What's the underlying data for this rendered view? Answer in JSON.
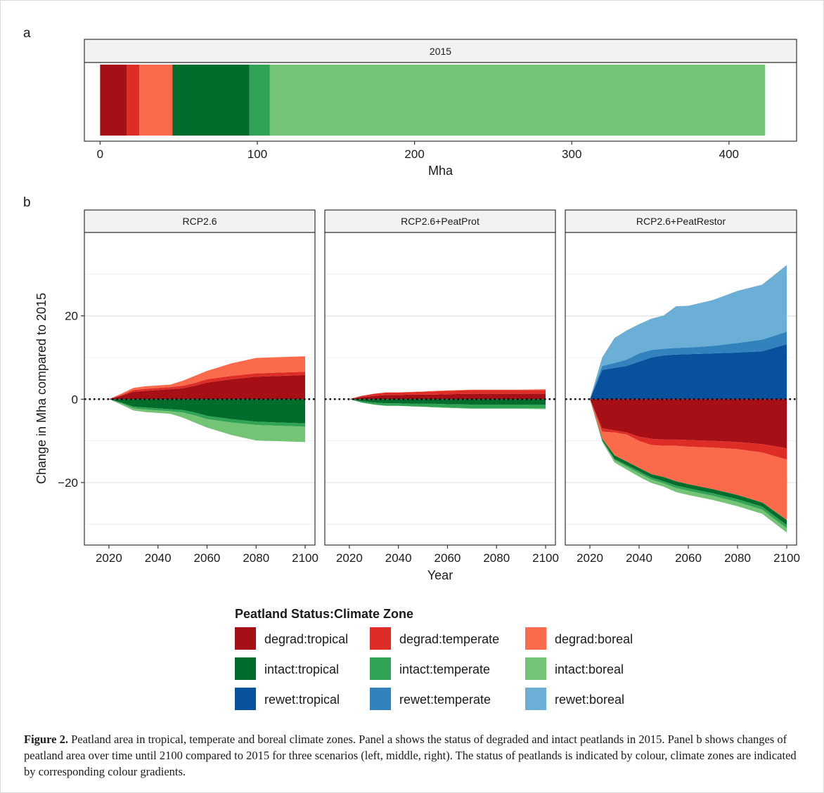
{
  "figure": {
    "panel_a_tag": "a",
    "panel_b_tag": "b",
    "caption_label": "Figure 2.",
    "caption_text": " Peatland area in tropical, temperate and boreal climate zones. Panel a shows the status of degraded and intact peatlands in 2015. Panel b shows changes of peatland area over time until 2100 compared to 2015 for three scenarios (left, middle, right). The status of peatlands is indicated by colour, climate zones are indicated by corresponding colour gradients."
  },
  "colors": {
    "degrad:tropical": "#a50f15",
    "degrad:temperate": "#de2d26",
    "degrad:boreal": "#fb6a4a",
    "intact:tropical": "#006d2c",
    "intact:temperate": "#31a354",
    "intact:boreal": "#74c476",
    "rewet:tropical": "#08519c",
    "rewet:temperate": "#3182bd",
    "rewet:boreal": "#6baed6"
  },
  "legend": {
    "title": "Peatland Status:Climate Zone",
    "items": [
      "degrad:tropical",
      "degrad:temperate",
      "degrad:boreal",
      "intact:tropical",
      "intact:temperate",
      "intact:boreal",
      "rewet:tropical",
      "rewet:temperate",
      "rewet:boreal"
    ]
  },
  "chart_data": [
    {
      "id": "panel-a",
      "type": "bar",
      "orientation": "horizontal",
      "stacked": true,
      "strip": "2015",
      "xlabel": "Mha",
      "xlim": [
        -10,
        443
      ],
      "xticks": [
        0,
        100,
        200,
        300,
        400
      ],
      "segments": [
        {
          "name": "degrad:tropical",
          "value": 17
        },
        {
          "name": "degrad:temperate",
          "value": 8
        },
        {
          "name": "degrad:boreal",
          "value": 21
        },
        {
          "name": "intact:tropical",
          "value": 49
        },
        {
          "name": "intact:temperate",
          "value": 13
        },
        {
          "name": "intact:boreal",
          "value": 315
        }
      ]
    },
    {
      "id": "panel-b",
      "type": "area",
      "stacked": true,
      "xlabel": "Year",
      "ylabel": "Change in Mha compared to 2015",
      "xlim": [
        2010,
        2104
      ],
      "ylim": [
        -35,
        40
      ],
      "xticks": [
        2020,
        2040,
        2060,
        2080,
        2100
      ],
      "yticks": [
        -20,
        0,
        20
      ],
      "reference_line": 0,
      "x": [
        2015,
        2020,
        2025,
        2030,
        2035,
        2040,
        2045,
        2050,
        2055,
        2060,
        2070,
        2080,
        2090,
        2100
      ],
      "facets": [
        {
          "strip": "RCP2.6",
          "positive": [
            {
              "name": "degrad:tropical",
              "values": [
                0,
                0,
                0.8,
                1.8,
                2.0,
                2.2,
                2.4,
                2.6,
                3.2,
                4.0,
                4.8,
                5.4,
                5.6,
                5.8
              ]
            },
            {
              "name": "degrad:temperate",
              "values": [
                0,
                0,
                0.2,
                0.4,
                0.5,
                0.5,
                0.5,
                0.6,
                0.7,
                0.8,
                0.8,
                0.8,
                0.8,
                0.8
              ]
            },
            {
              "name": "degrad:boreal",
              "values": [
                0,
                0,
                0.3,
                0.5,
                0.6,
                0.6,
                0.6,
                1.2,
                1.7,
                2.0,
                3.0,
                3.7,
                3.7,
                3.7
              ]
            }
          ],
          "negative": [
            {
              "name": "intact:tropical",
              "values": [
                0,
                0,
                -0.8,
                -1.8,
                -2.0,
                -2.2,
                -2.4,
                -2.6,
                -3.2,
                -4.0,
                -4.8,
                -5.4,
                -5.6,
                -5.8
              ]
            },
            {
              "name": "intact:temperate",
              "values": [
                0,
                0,
                -0.2,
                -0.4,
                -0.5,
                -0.5,
                -0.5,
                -0.6,
                -0.7,
                -0.8,
                -0.8,
                -0.8,
                -0.8,
                -0.8
              ]
            },
            {
              "name": "intact:boreal",
              "values": [
                0,
                0,
                -0.3,
                -0.5,
                -0.6,
                -0.6,
                -0.6,
                -1.2,
                -1.7,
                -2.0,
                -3.0,
                -3.7,
                -3.7,
                -3.7
              ]
            }
          ]
        },
        {
          "strip": "RCP2.6+PeatProt",
          "positive": [
            {
              "name": "degrad:tropical",
              "values": [
                0,
                0,
                0.5,
                0.8,
                1.0,
                1.0,
                1.1,
                1.1,
                1.1,
                1.2,
                1.3,
                1.3,
                1.3,
                1.3
              ]
            },
            {
              "name": "degrad:temperate",
              "values": [
                0,
                0,
                0.3,
                0.5,
                0.6,
                0.6,
                0.6,
                0.7,
                0.8,
                0.8,
                0.9,
                0.9,
                0.9,
                0.9
              ]
            },
            {
              "name": "degrad:boreal",
              "values": [
                0,
                0,
                0,
                0,
                0,
                0,
                0.05,
                0.05,
                0.1,
                0.1,
                0.1,
                0.1,
                0.1,
                0.2
              ]
            }
          ],
          "negative": [
            {
              "name": "intact:tropical",
              "values": [
                0,
                0,
                -0.5,
                -0.8,
                -1.0,
                -1.0,
                -1.1,
                -1.1,
                -1.1,
                -1.2,
                -1.3,
                -1.3,
                -1.3,
                -1.3
              ]
            },
            {
              "name": "intact:temperate",
              "values": [
                0,
                0,
                -0.3,
                -0.5,
                -0.6,
                -0.6,
                -0.6,
                -0.7,
                -0.8,
                -0.8,
                -0.9,
                -0.9,
                -0.9,
                -0.9
              ]
            },
            {
              "name": "intact:boreal",
              "values": [
                0,
                0,
                0,
                0,
                0,
                0,
                -0.05,
                -0.05,
                -0.1,
                -0.1,
                -0.1,
                -0.1,
                -0.1,
                -0.2
              ]
            }
          ]
        },
        {
          "strip": "RCP2.6+PeatRestor",
          "positive": [
            {
              "name": "rewet:tropical",
              "values": [
                0,
                0,
                7.0,
                7.5,
                8.0,
                9.0,
                10.0,
                10.5,
                10.7,
                10.8,
                11.0,
                11.2,
                11.5,
                13.2
              ]
            },
            {
              "name": "rewet:temperate",
              "values": [
                0,
                0,
                1.0,
                1.2,
                1.5,
                2.0,
                1.8,
                1.6,
                1.6,
                1.6,
                1.8,
                2.3,
                2.8,
                3.0
              ]
            },
            {
              "name": "rewet:boreal",
              "values": [
                0,
                0,
                2.0,
                6.0,
                7.0,
                7.0,
                7.5,
                8.0,
                10.0,
                10.0,
                11.0,
                12.5,
                13.2,
                16.0
              ]
            }
          ],
          "negative": [
            {
              "name": "degrad:tropical",
              "values": [
                0,
                0,
                -7.0,
                -7.5,
                -8.0,
                -9.0,
                -9.5,
                -9.7,
                -9.7,
                -9.8,
                -10.0,
                -10.3,
                -10.8,
                -11.8
              ]
            },
            {
              "name": "degrad:temperate",
              "values": [
                0,
                0,
                -0.8,
                -0.5,
                -0.5,
                -1.0,
                -1.5,
                -1.5,
                -1.5,
                -1.6,
                -1.6,
                -1.7,
                -2.0,
                -2.7
              ]
            },
            {
              "name": "degrad:boreal",
              "values": [
                0,
                0,
                -1.7,
                -5.5,
                -6.5,
                -6.5,
                -7.0,
                -7.5,
                -8.5,
                -9.0,
                -10.0,
                -11.0,
                -12.0,
                -14.5
              ]
            },
            {
              "name": "intact:tropical",
              "values": [
                0,
                0,
                -0.3,
                -0.8,
                -0.8,
                -0.8,
                -0.8,
                -1.0,
                -1.0,
                -1.0,
                -1.0,
                -1.0,
                -1.0,
                -1.2
              ]
            },
            {
              "name": "intact:temperate",
              "values": [
                0,
                0,
                -0.2,
                -0.3,
                -0.4,
                -0.5,
                -0.5,
                -0.5,
                -0.6,
                -0.6,
                -0.6,
                -0.7,
                -0.7,
                -0.8
              ]
            },
            {
              "name": "intact:boreal",
              "values": [
                0,
                0,
                -0.2,
                -0.6,
                -0.7,
                -0.8,
                -0.8,
                -0.8,
                -1.0,
                -1.0,
                -1.0,
                -1.0,
                -1.0,
                -1.0
              ]
            }
          ]
        }
      ]
    }
  ]
}
